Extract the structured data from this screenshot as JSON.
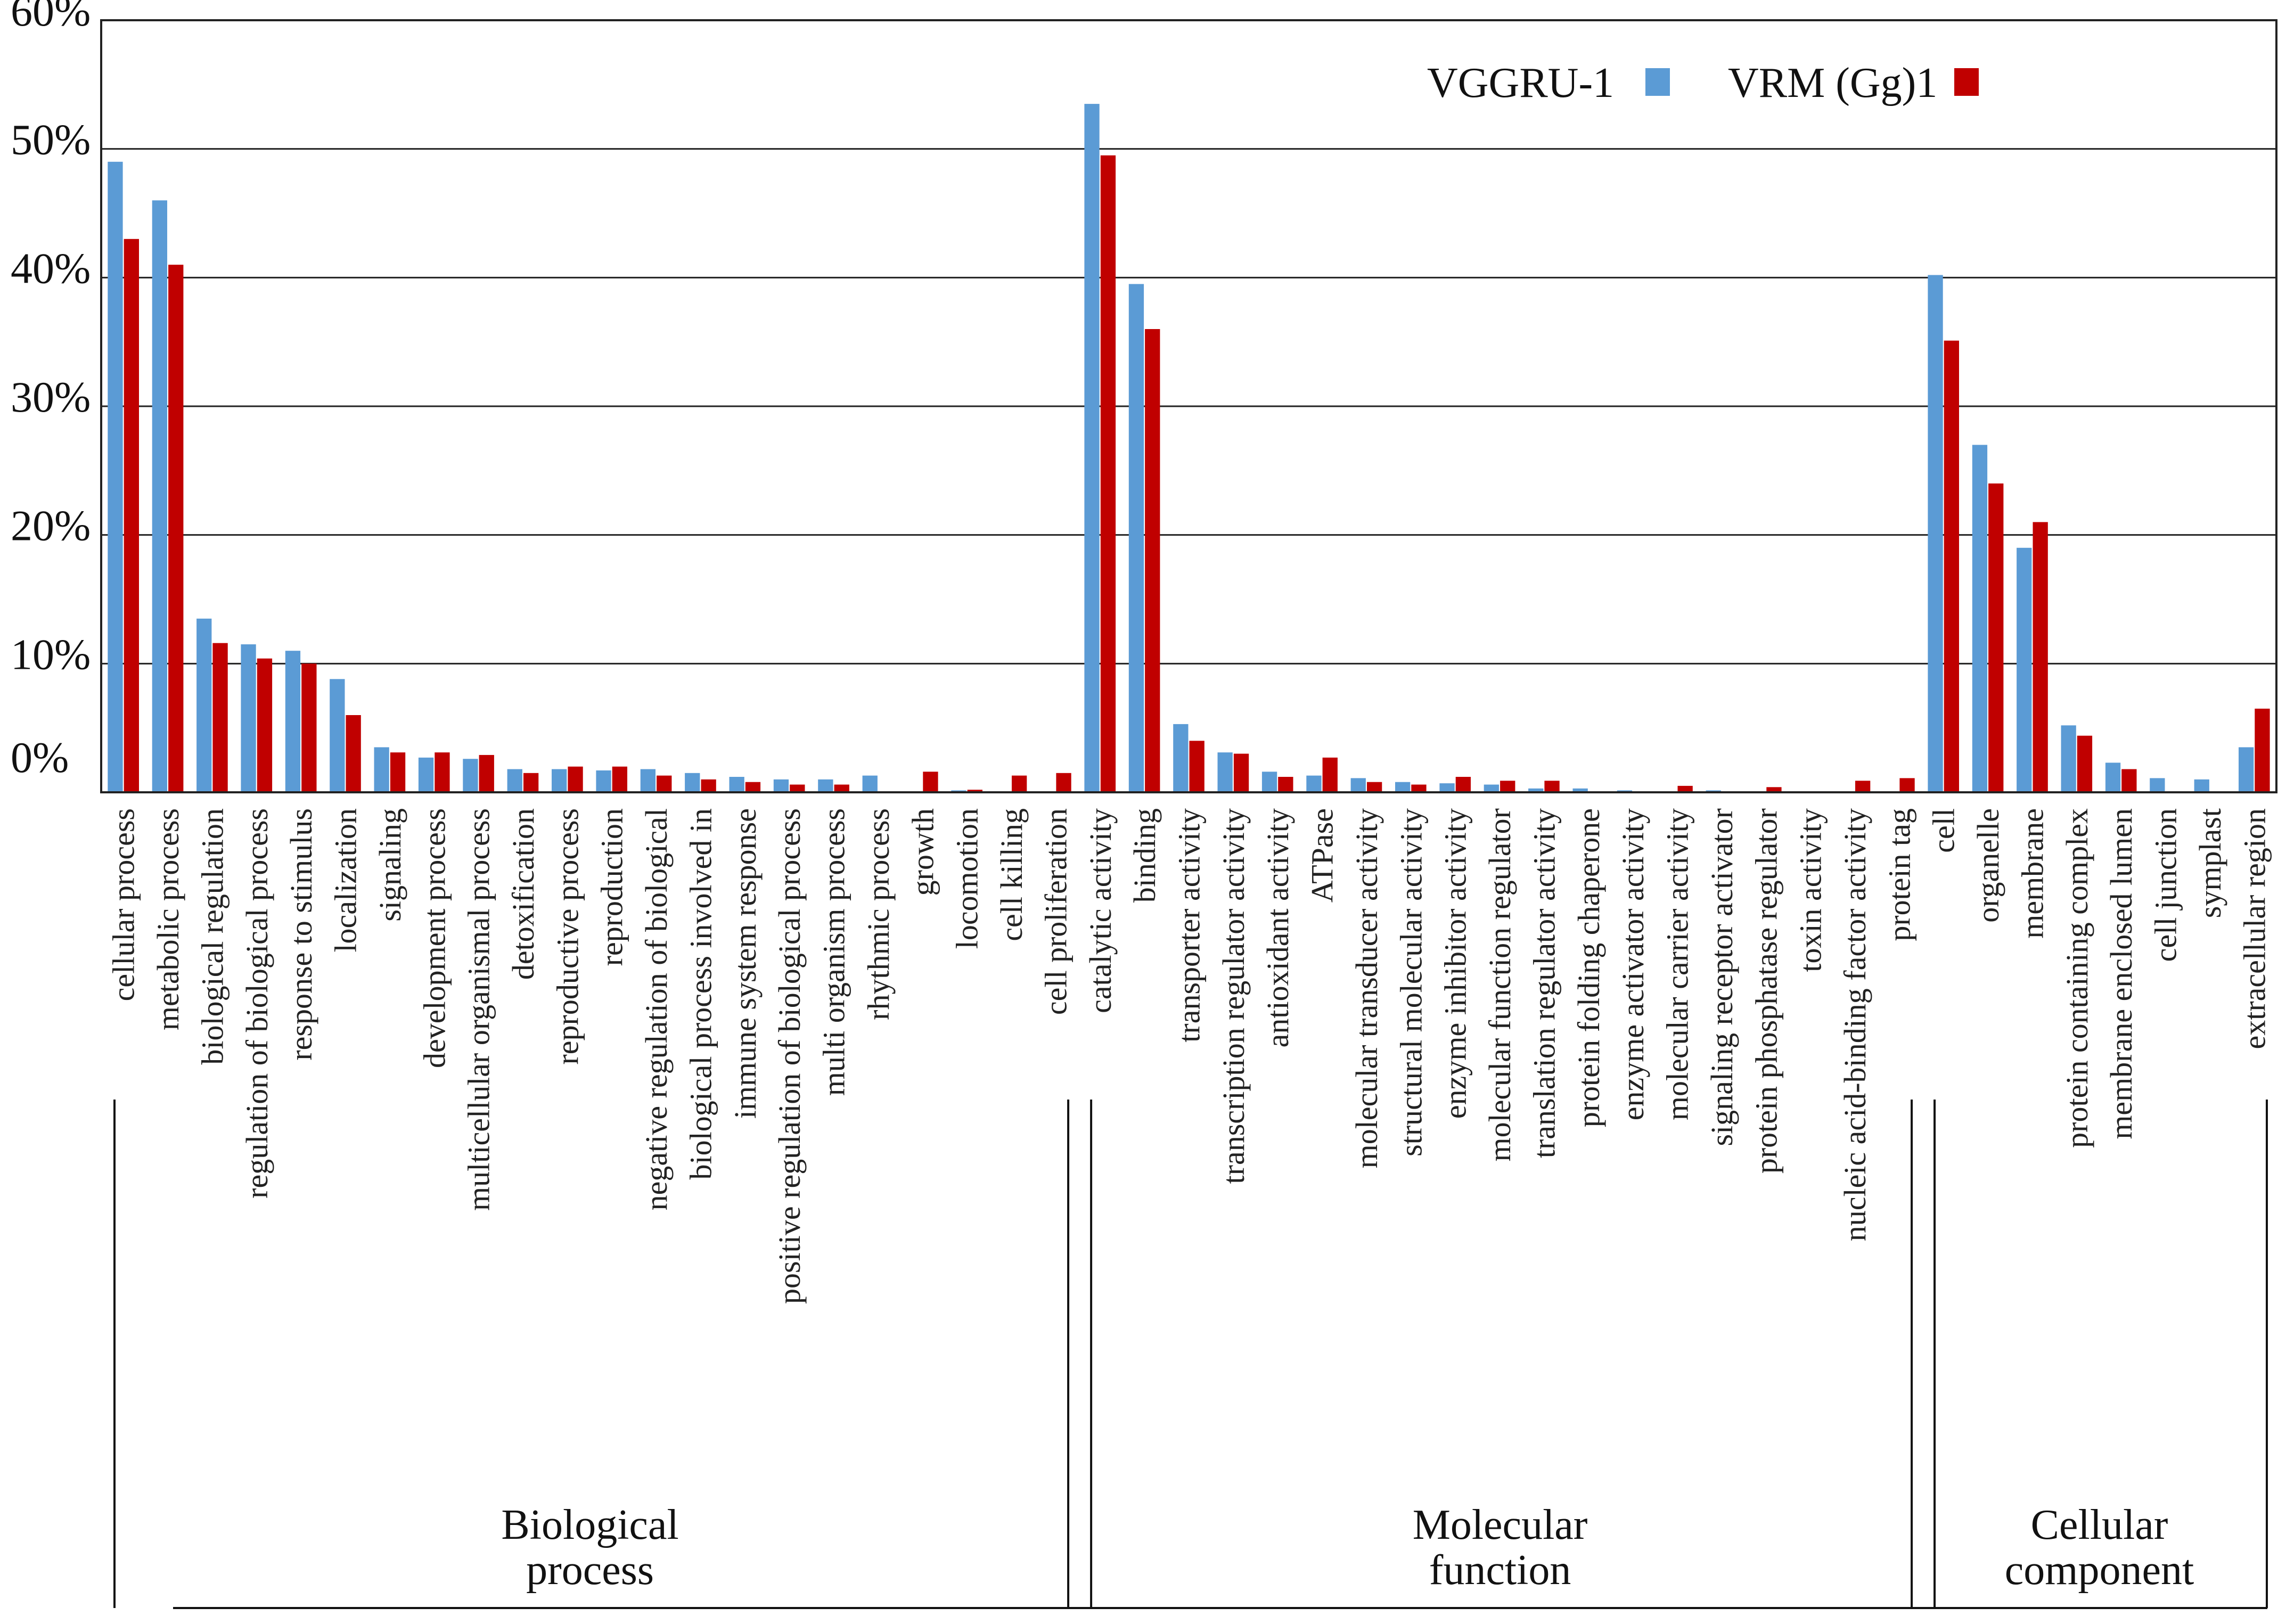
{
  "chart_data": {
    "type": "bar",
    "title": "",
    "xlabel": "",
    "ylabel": "",
    "ylim": [
      0,
      60
    ],
    "ytick_labels": [
      "0%",
      "10%",
      "20%",
      "30%",
      "40%",
      "50%",
      "60%"
    ],
    "legend": {
      "position": "top-right",
      "entries": [
        "VGGRU-1",
        "VRM (Gg)1"
      ]
    },
    "colors": {
      "VGGRU-1": "#5b9bd5",
      "VRM (Gg)1": "#c00000"
    },
    "categories": [
      "cellular process",
      "metabolic process",
      "biological regulation",
      "regulation of biological process",
      "response to stimulus",
      "localization",
      "signaling",
      "development process",
      "multicellular organismal process",
      "detoxification",
      "reproductive process",
      "reproduction",
      "negative regulation of biological",
      "biological process involved in",
      "immune system response",
      "positive regulation of biological process",
      "multi organism process",
      "rhythmic process",
      "growth",
      "locomotion",
      "cell killing",
      "cell proliferation",
      "catalytic activity",
      "binding",
      "transporter activity",
      "transcription regulator activity",
      "antioxidant activity",
      "ATPase",
      "molecular transducer activity",
      "structural molecular activity",
      "enzyme inhibitor activity",
      "molecular function regulator",
      "translation regulator activity",
      "protein folding chaperone",
      "enzyme activator activity",
      "molecular carrier activity",
      "signaling receptor activator",
      "protein phosphatase regulator",
      "toxin activity",
      "nucleic acid-binding factor activity",
      "protein tag",
      "cell",
      "organelle",
      "membrane",
      "protein containing complex",
      "membrane enclosed lumen",
      "cell junction",
      "symplast",
      "extracellular region"
    ],
    "series": [
      {
        "name": "VGGRU-1",
        "values": [
          49.0,
          46.0,
          13.5,
          11.5,
          11.0,
          8.8,
          3.5,
          2.7,
          2.6,
          1.8,
          1.8,
          1.7,
          1.8,
          1.5,
          1.2,
          1.0,
          1.0,
          1.3,
          0.0,
          0.15,
          0.0,
          0.0,
          53.5,
          39.5,
          5.3,
          3.1,
          1.6,
          1.3,
          1.1,
          0.8,
          0.7,
          0.6,
          0.3,
          0.3,
          0.15,
          0.0,
          0.15,
          0.0,
          0.0,
          0.0,
          0.0,
          40.2,
          27.0,
          19.0,
          5.2,
          2.3,
          1.1,
          1.0,
          3.5
        ]
      },
      {
        "name": "VRM (Gg)1",
        "values": [
          43.0,
          41.0,
          11.6,
          10.4,
          10.0,
          6.0,
          3.1,
          3.1,
          2.9,
          1.5,
          2.0,
          2.0,
          1.3,
          1.0,
          0.8,
          0.6,
          0.6,
          0.0,
          1.6,
          0.2,
          1.3,
          1.5,
          49.5,
          36.0,
          4.0,
          3.0,
          1.2,
          2.7,
          0.8,
          0.6,
          1.2,
          0.9,
          0.9,
          0.0,
          0.0,
          0.5,
          0.0,
          0.4,
          0.0,
          0.9,
          1.1,
          35.1,
          24.0,
          21.0,
          4.4,
          1.8,
          0.0,
          0.0,
          6.5
        ]
      }
    ],
    "groups": [
      {
        "label_lines": [
          "Biological",
          "process"
        ],
        "start": 0,
        "end": 21
      },
      {
        "label_lines": [
          "Molecular",
          "function"
        ],
        "start": 22,
        "end": 40
      },
      {
        "label_lines": [
          "Cellular",
          "component"
        ],
        "start": 41,
        "end": 48
      }
    ]
  }
}
